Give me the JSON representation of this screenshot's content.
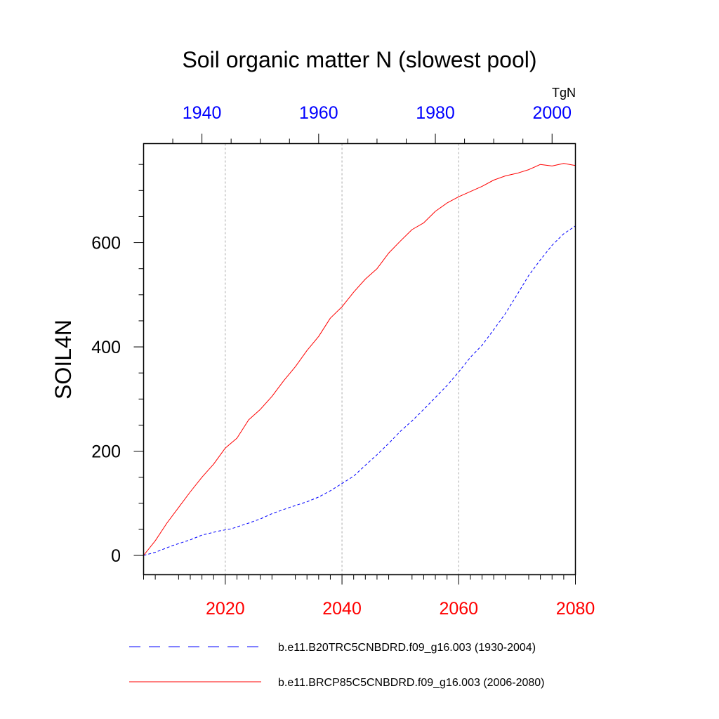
{
  "chart_data": {
    "type": "line",
    "title": "Soil organic matter N (slowest pool)",
    "ylabel": "SOIL4N",
    "units": "TgN",
    "ylim": [
      -37,
      790
    ],
    "y_ticks": [
      0,
      200,
      400,
      600
    ],
    "x_bottom": {
      "range": [
        2006,
        2080
      ],
      "ticks": [
        2020,
        2040,
        2060,
        2080
      ],
      "color": "#ff0000",
      "grid": true
    },
    "x_top": {
      "range": [
        1930,
        2004
      ],
      "ticks": [
        1940,
        1960,
        1980,
        2000
      ],
      "color": "#0000ff"
    },
    "series": [
      {
        "name": "b.e11.B20TRC5CNBDRD.f09_g16.003 (1930-2004)",
        "axis": "top",
        "color": "#0000ff",
        "dash": "dashed",
        "x": [
          1930,
          1932,
          1935,
          1938,
          1940,
          1943,
          1945,
          1948,
          1950,
          1952,
          1955,
          1958,
          1960,
          1962,
          1964,
          1966,
          1968,
          1970,
          1972,
          1974,
          1976,
          1978,
          1980,
          1982,
          1984,
          1986,
          1988,
          1990,
          1992,
          1994,
          1996,
          1998,
          2000,
          2002,
          2004
        ],
        "y": [
          0,
          6,
          19,
          30,
          39,
          47,
          51,
          62,
          70,
          80,
          92,
          103,
          112,
          124,
          138,
          152,
          173,
          193,
          215,
          238,
          258,
          280,
          303,
          326,
          352,
          380,
          403,
          433,
          464,
          500,
          537,
          567,
          595,
          617,
          632
        ]
      },
      {
        "name": "b.e11.BRCP85C5CNBDRD.f09_g16.003 (2006-2080)",
        "axis": "bottom",
        "color": "#ff0000",
        "dash": "solid",
        "x": [
          2006,
          2008,
          2010,
          2012,
          2014,
          2016,
          2018,
          2020,
          2022,
          2024,
          2026,
          2028,
          2030,
          2032,
          2034,
          2036,
          2038,
          2040,
          2042,
          2044,
          2046,
          2048,
          2050,
          2052,
          2054,
          2056,
          2058,
          2060,
          2062,
          2064,
          2066,
          2068,
          2070,
          2072,
          2074,
          2076,
          2078,
          2080
        ],
        "y": [
          0,
          28,
          62,
          92,
          122,
          150,
          175,
          206,
          225,
          260,
          280,
          305,
          335,
          362,
          393,
          420,
          455,
          477,
          505,
          530,
          550,
          580,
          603,
          625,
          638,
          660,
          676,
          688,
          698,
          708,
          720,
          728,
          733,
          740,
          750,
          747,
          752,
          748
        ]
      }
    ],
    "grid": "vertical dotted at bottom-axis major ticks",
    "legend_placement": "bottom"
  }
}
